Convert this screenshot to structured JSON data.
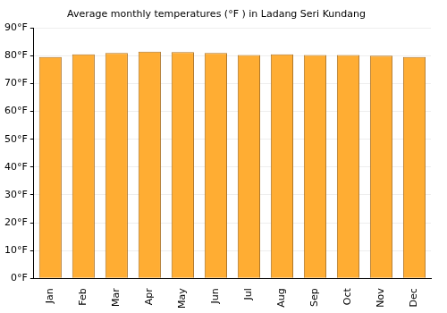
{
  "chart_data": {
    "type": "bar",
    "title": "Average monthly temperatures (°F ) in Ladang Seri Kundang",
    "categories": [
      "Jan",
      "Feb",
      "Mar",
      "Apr",
      "May",
      "Jun",
      "Jul",
      "Aug",
      "Sep",
      "Oct",
      "Nov",
      "Dec"
    ],
    "values": [
      79.5,
      80.5,
      81,
      81.5,
      81.3,
      81,
      80.3,
      80.5,
      80.3,
      80.3,
      80,
      79.5
    ],
    "color": "#ffad33",
    "ylim": [
      0,
      90
    ],
    "yticks": [
      {
        "value": 0,
        "label": "0°F"
      },
      {
        "value": 10,
        "label": "10°F"
      },
      {
        "value": 20,
        "label": "20°F"
      },
      {
        "value": 30,
        "label": "30°F"
      },
      {
        "value": 40,
        "label": "40°F"
      },
      {
        "value": 50,
        "label": "50°F"
      },
      {
        "value": 60,
        "label": "60°F"
      },
      {
        "value": 70,
        "label": "70°F"
      },
      {
        "value": 80,
        "label": "80°F"
      },
      {
        "value": 90,
        "label": "90°F"
      }
    ],
    "grid": true
  }
}
